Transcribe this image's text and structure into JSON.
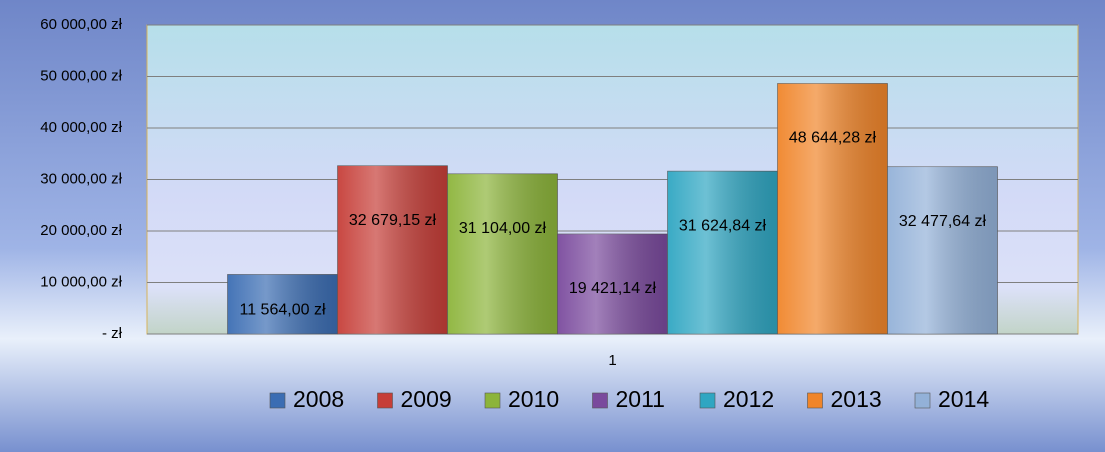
{
  "chart_data": {
    "type": "bar",
    "categories": [
      "1"
    ],
    "series": [
      {
        "name": "2008",
        "color": "#3b6db3",
        "values": [
          11564.0
        ],
        "value_labels": [
          "11 564,00 zł"
        ]
      },
      {
        "name": "2009",
        "color": "#c63e38",
        "values": [
          32679.15
        ],
        "value_labels": [
          "32 679,15 zł"
        ]
      },
      {
        "name": "2010",
        "color": "#8cb43a",
        "values": [
          31104.0
        ],
        "value_labels": [
          "31 104,00 zł"
        ]
      },
      {
        "name": "2011",
        "color": "#7a4a9d",
        "values": [
          19421.14
        ],
        "value_labels": [
          "19 421,14 zł"
        ]
      },
      {
        "name": "2012",
        "color": "#2fa6c2",
        "values": [
          31624.84
        ],
        "value_labels": [
          "31 624,84 zł"
        ]
      },
      {
        "name": "2013",
        "color": "#f0852a",
        "values": [
          48644.28
        ],
        "value_labels": [
          "48 644,28 zł"
        ]
      },
      {
        "name": "2014",
        "color": "#93b1d8",
        "values": [
          32477.64
        ],
        "value_labels": [
          "32 477,64 zł"
        ]
      }
    ],
    "ylim": [
      0,
      60000
    ],
    "yticks": [
      {
        "value": 0,
        "label": "-   zł"
      },
      {
        "value": 10000,
        "label": "10 000,00 zł"
      },
      {
        "value": 20000,
        "label": "20 000,00 zł"
      },
      {
        "value": 30000,
        "label": "30 000,00 zł"
      },
      {
        "value": 40000,
        "label": "40 000,00 zł"
      },
      {
        "value": 50000,
        "label": "50 000,00 zł"
      },
      {
        "value": 60000,
        "label": "60 000,00 zł"
      }
    ],
    "grid": true,
    "legend": "bottom"
  }
}
